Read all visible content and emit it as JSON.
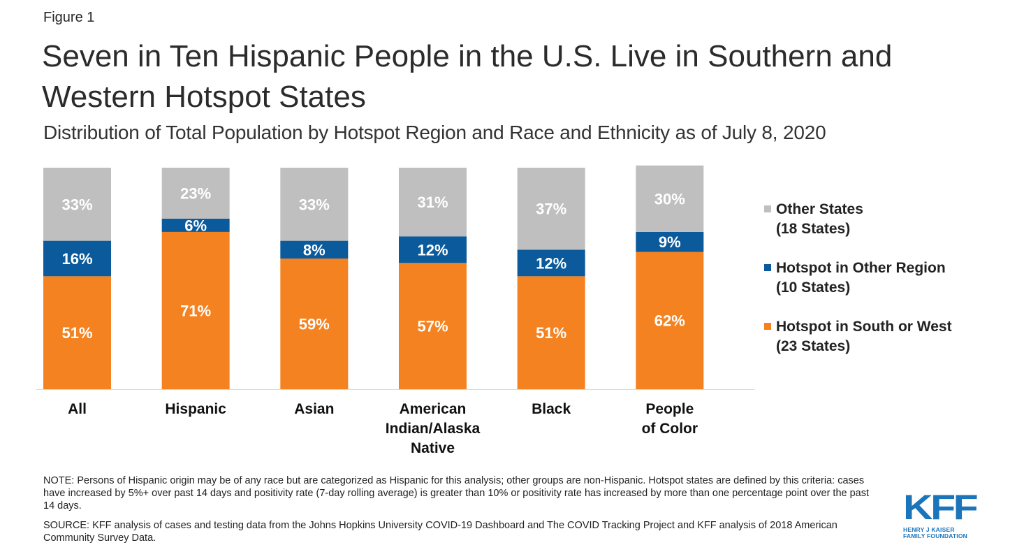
{
  "figure_label": "Figure 1",
  "title": "Seven in Ten Hispanic People in the U.S. Live in Southern and Western Hotspot States",
  "subtitle": "Distribution of Total Population by Hotspot Region and Race and Ethnicity as of July 8, 2020",
  "colors": {
    "south_west": "#f58220",
    "other_region": "#0a5a9c",
    "other_states": "#bfbfbf",
    "label_text": "#ffffff",
    "baseline": "#d9d9d9",
    "logo": "#1b75bb"
  },
  "chart_data": {
    "type": "bar",
    "stacked": true,
    "percent": true,
    "categories": [
      "All",
      "Hispanic",
      "Asian",
      "American Indian/Alaska Native",
      "Black",
      "People of Color"
    ],
    "category_labels": [
      "All",
      "Hispanic",
      "Asian",
      "American\nIndian/Alaska\nNative",
      "Black",
      "People\nof Color"
    ],
    "series": [
      {
        "name": "Hotspot in South or West (23 States)",
        "color_key": "south_west",
        "values": [
          51,
          71,
          59,
          57,
          51,
          62
        ],
        "labels": [
          "51%",
          "71%",
          "59%",
          "57%",
          "51%",
          "62%"
        ]
      },
      {
        "name": "Hotspot in Other Region (10 States)",
        "color_key": "other_region",
        "values": [
          16,
          6,
          8,
          12,
          12,
          9
        ],
        "labels": [
          "16%",
          "6%",
          "8%",
          "12%",
          "12%",
          "9%"
        ]
      },
      {
        "name": "Other States (18 States)",
        "color_key": "other_states",
        "values": [
          33,
          23,
          33,
          31,
          37,
          30
        ],
        "labels": [
          "33%",
          "23%",
          "33%",
          "31%",
          "37%",
          "30%"
        ]
      }
    ],
    "ylim": [
      0,
      100
    ],
    "grid": false,
    "legend_position": "right",
    "legend": [
      {
        "text": "Other States\n(18 States)",
        "color_key": "other_states"
      },
      {
        "text": "Hotspot in Other Region\n(10 States)",
        "color_key": "other_region"
      },
      {
        "text": "Hotspot in South or West\n(23 States)",
        "color_key": "south_west"
      }
    ]
  },
  "note": "NOTE: Persons of Hispanic origin may be of any race but are categorized as Hispanic for this analysis; other groups are non-Hispanic. Hotspot states are defined by this criteria: cases have increased by 5%+ over past 14 days and positivity rate (7-day rolling average) is greater than 10% or positivity rate has increased by more than one percentage point over the past 14 days.",
  "source": "SOURCE: KFF analysis of cases and testing data from the Johns Hopkins University COVID-19 Dashboard and The COVID Tracking Project and KFF analysis of 2018 American Community Survey Data.",
  "logo": {
    "mark": "KFF",
    "subtitle": "HENRY J KAISER\nFAMILY FOUNDATION",
    "icon": "kff-logo-icon"
  }
}
